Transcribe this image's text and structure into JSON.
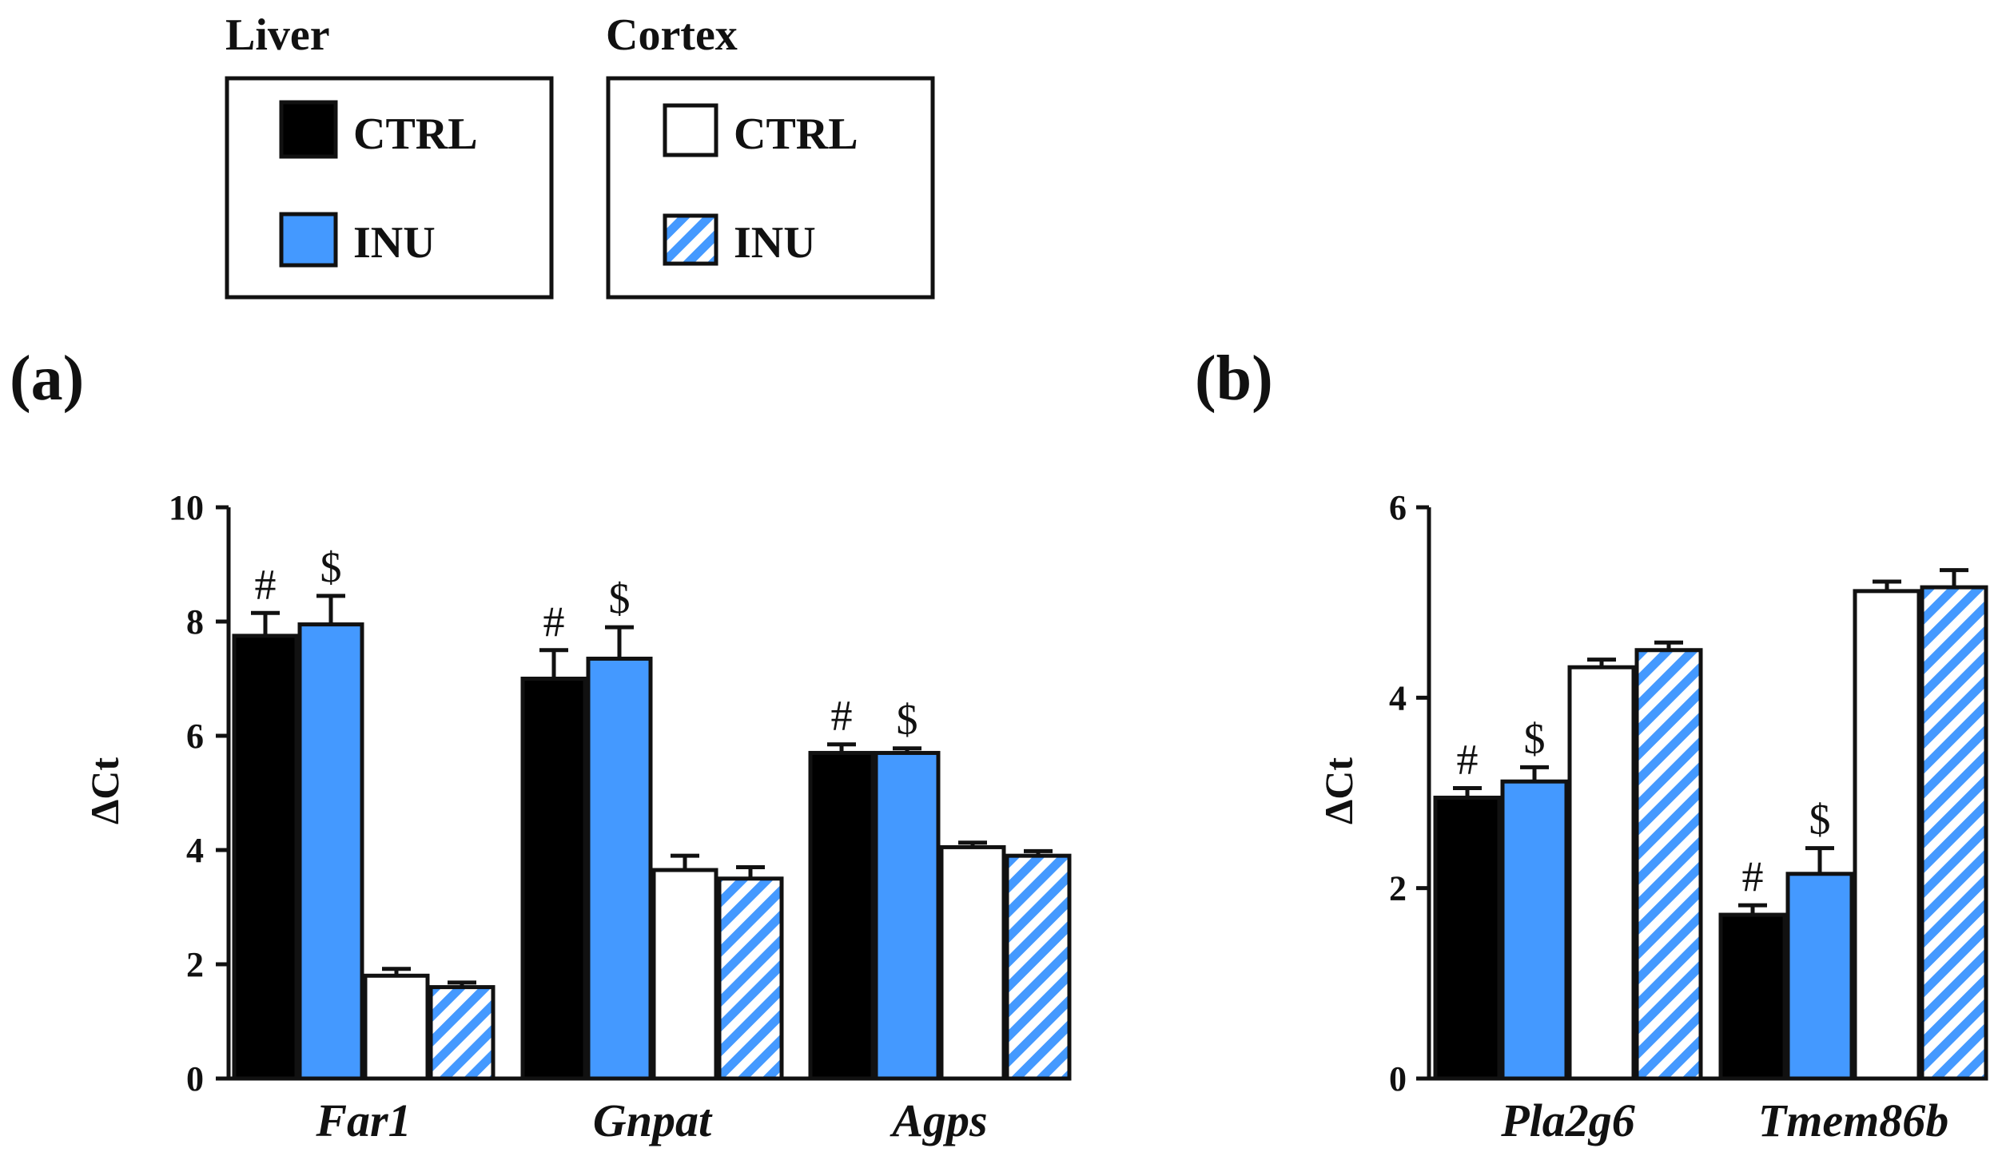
{
  "legend": {
    "groups": [
      {
        "title": "Liver",
        "entries": [
          {
            "label": "CTRL",
            "key": "liver_ctrl"
          },
          {
            "label": "INU",
            "key": "liver_inu"
          }
        ]
      },
      {
        "title": "Cortex",
        "entries": [
          {
            "label": "CTRL",
            "key": "cortex_ctrl"
          },
          {
            "label": "INU",
            "key": "cortex_inu"
          }
        ]
      }
    ]
  },
  "styles": {
    "liver_ctrl": {
      "fill": "#000000",
      "pattern": "solid"
    },
    "liver_inu": {
      "fill": "#4499ff",
      "pattern": "solid"
    },
    "cortex_ctrl": {
      "fill": "#ffffff",
      "pattern": "solid"
    },
    "cortex_inu": {
      "fill": "#4499ff",
      "pattern": "hatch"
    }
  },
  "chart_data": [
    {
      "panel": "(a)",
      "type": "bar",
      "ylabel": "ΔCt",
      "ylim": [
        0,
        10
      ],
      "yticks": [
        0,
        2,
        4,
        6,
        8,
        10
      ],
      "categories": [
        "Far1",
        "Gnpat",
        "Agps"
      ],
      "series": [
        {
          "name": "Liver CTRL",
          "key": "liver_ctrl",
          "values": [
            7.75,
            7.0,
            5.7
          ],
          "errors": [
            0.4,
            0.5,
            0.15
          ],
          "sig": [
            "#",
            "#",
            "#"
          ]
        },
        {
          "name": "Liver INU",
          "key": "liver_inu",
          "values": [
            7.95,
            7.35,
            5.7
          ],
          "errors": [
            0.5,
            0.55,
            0.08
          ],
          "sig": [
            "$",
            "$",
            "$"
          ]
        },
        {
          "name": "Cortex CTRL",
          "key": "cortex_ctrl",
          "values": [
            1.8,
            3.65,
            4.05
          ],
          "errors": [
            0.12,
            0.25,
            0.08
          ],
          "sig": [
            "",
            "",
            ""
          ]
        },
        {
          "name": "Cortex INU",
          "key": "cortex_inu",
          "values": [
            1.6,
            3.5,
            3.9
          ],
          "errors": [
            0.08,
            0.2,
            0.08
          ],
          "sig": [
            "",
            "",
            ""
          ]
        }
      ]
    },
    {
      "panel": "(b)",
      "type": "bar",
      "ylabel": "ΔCt",
      "ylim": [
        0,
        6
      ],
      "yticks": [
        0,
        2,
        4,
        6
      ],
      "categories": [
        "Pla2g6",
        "Tmem86b"
      ],
      "series": [
        {
          "name": "Liver CTRL",
          "key": "liver_ctrl",
          "values": [
            2.95,
            1.72
          ],
          "errors": [
            0.1,
            0.1
          ],
          "sig": [
            "#",
            "#"
          ]
        },
        {
          "name": "Liver INU",
          "key": "liver_inu",
          "values": [
            3.12,
            2.15
          ],
          "errors": [
            0.15,
            0.27
          ],
          "sig": [
            "$",
            "$"
          ]
        },
        {
          "name": "Cortex CTRL",
          "key": "cortex_ctrl",
          "values": [
            4.32,
            5.12
          ],
          "errors": [
            0.08,
            0.1
          ],
          "sig": [
            "",
            ""
          ]
        },
        {
          "name": "Cortex INU",
          "key": "cortex_inu",
          "values": [
            4.5,
            5.16
          ],
          "errors": [
            0.08,
            0.18
          ],
          "sig": [
            "",
            ""
          ]
        }
      ]
    }
  ]
}
